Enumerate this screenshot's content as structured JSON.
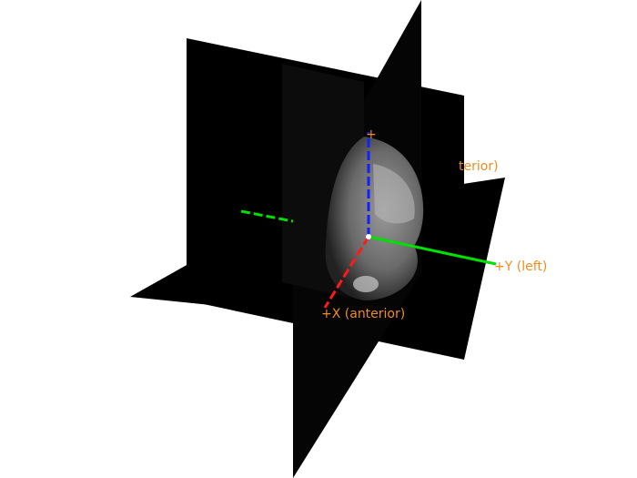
{
  "axis_labels": {
    "y_positive": "+Y (left)",
    "x_positive": "+X (anterior)",
    "occluded_upper": "terior)",
    "occluded_top": "+"
  }
}
